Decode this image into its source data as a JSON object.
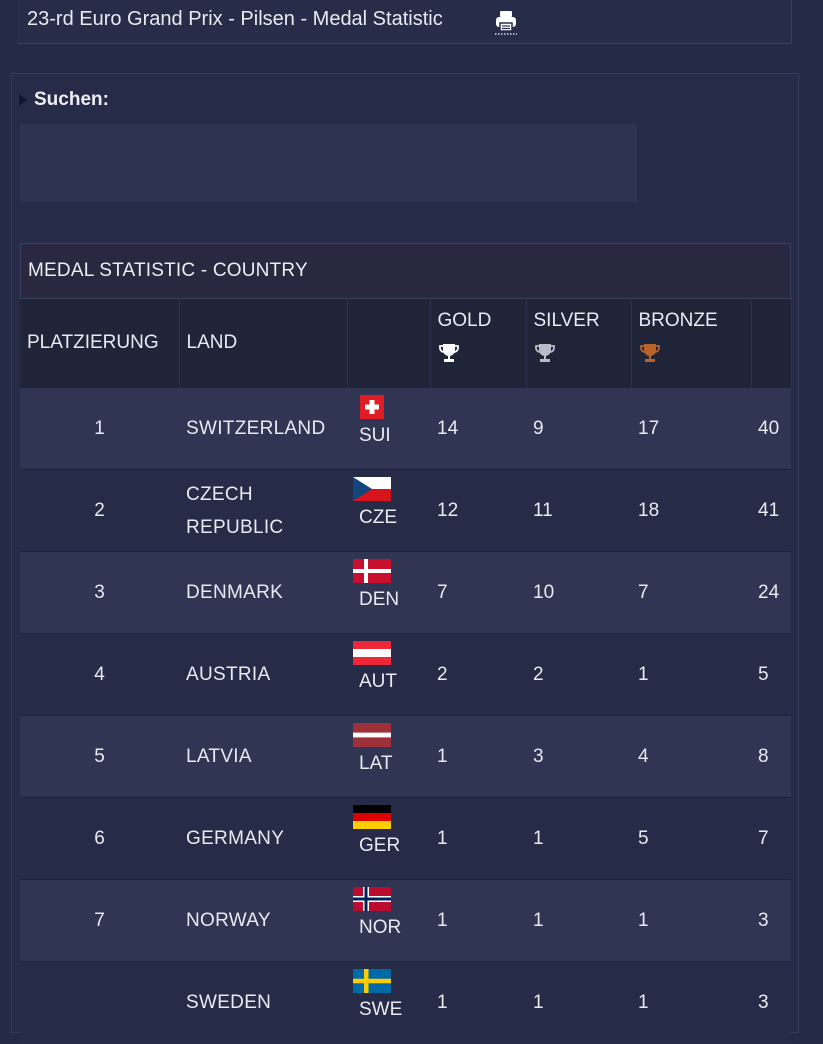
{
  "header": {
    "title": "23-rd Euro Grand Prix - Pilsen - Medal Statistic",
    "print_icon": "printer-icon"
  },
  "search": {
    "label": "Suchen:"
  },
  "table": {
    "caption": "MEDAL STATISTIC - COUNTRY",
    "columns": {
      "rank": "PLATZIERUNG",
      "country": "LAND",
      "gold": "GOLD",
      "silver": "SILVER",
      "bronze": "BRONZE"
    },
    "medal_colors": {
      "gold": "#ffffff",
      "silver": "#b9bcc6",
      "bronze": "#b8632a"
    },
    "rows": [
      {
        "rank": "1",
        "country": "SWITZERLAND",
        "code": "SUI",
        "flag": "switzerland-flag-icon",
        "gold": "14",
        "silver": "9",
        "bronze": "17",
        "total": "40"
      },
      {
        "rank": "2",
        "country": "CZECH REPUBLIC",
        "code": "CZE",
        "flag": "czech-flag-icon",
        "gold": "12",
        "silver": "11",
        "bronze": "18",
        "total": "41"
      },
      {
        "rank": "3",
        "country": "DENMARK",
        "code": "DEN",
        "flag": "denmark-flag-icon",
        "gold": "7",
        "silver": "10",
        "bronze": "7",
        "total": "24"
      },
      {
        "rank": "4",
        "country": "AUSTRIA",
        "code": "AUT",
        "flag": "austria-flag-icon",
        "gold": "2",
        "silver": "2",
        "bronze": "1",
        "total": "5"
      },
      {
        "rank": "5",
        "country": "LATVIA",
        "code": "LAT",
        "flag": "latvia-flag-icon",
        "gold": "1",
        "silver": "3",
        "bronze": "4",
        "total": "8"
      },
      {
        "rank": "6",
        "country": "GERMANY",
        "code": "GER",
        "flag": "germany-flag-icon",
        "gold": "1",
        "silver": "1",
        "bronze": "5",
        "total": "7"
      },
      {
        "rank": "7",
        "country": "NORWAY",
        "code": "NOR",
        "flag": "norway-flag-icon",
        "gold": "1",
        "silver": "1",
        "bronze": "1",
        "total": "3"
      },
      {
        "rank": "",
        "country": "SWEDEN",
        "code": "SWE",
        "flag": "sweden-flag-icon",
        "gold": "1",
        "silver": "1",
        "bronze": "1",
        "total": "3"
      }
    ]
  }
}
